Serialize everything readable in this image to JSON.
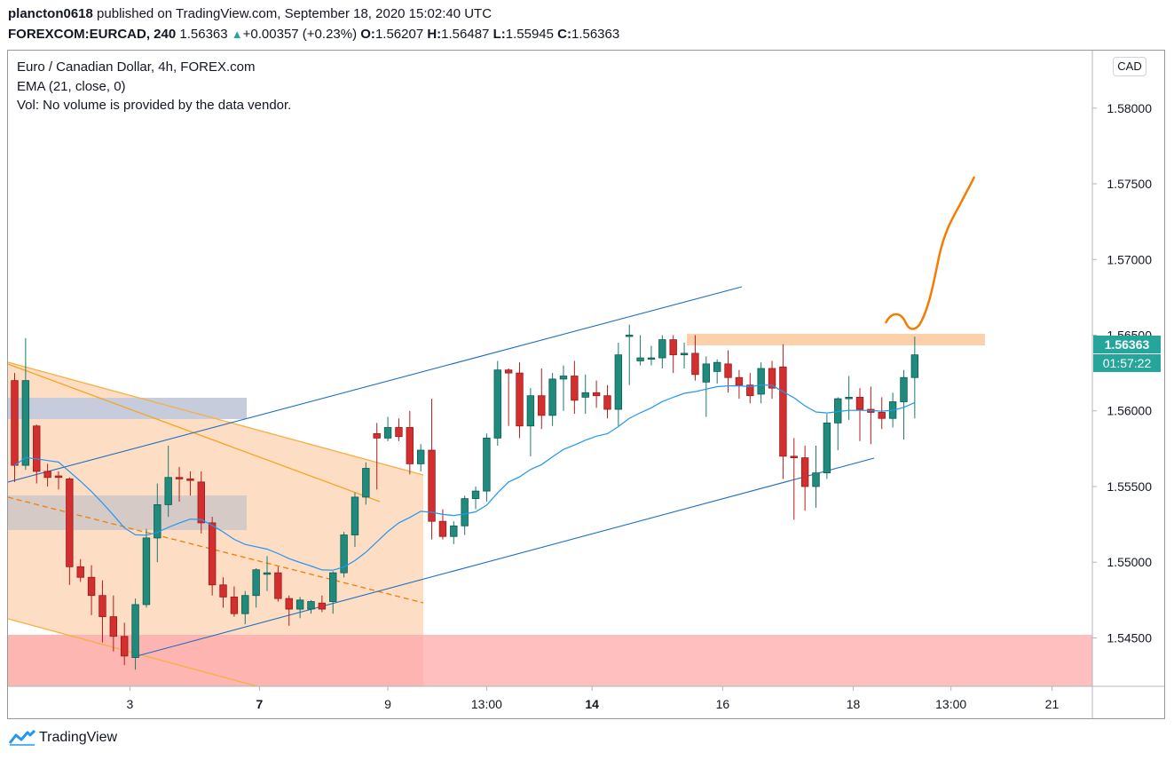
{
  "header": {
    "publisher": "plancton0618",
    "published_text": "published on TradingView.com, September 18, 2020 15:02:40 UTC",
    "symbol": "FOREXCOM:EURCAD, 240",
    "last": "1.56363",
    "change_arrow": "▲",
    "change": "+0.00357 (+0.23%)",
    "o_label": "O:",
    "o_value": "1.56207",
    "h_label": "H:",
    "h_value": "1.56487",
    "l_label": "L:",
    "l_value": "1.55945",
    "c_label": "C:",
    "c_value": "1.56363"
  },
  "legend": {
    "title": "Euro / Canadian Dollar, 4h, FOREX.com",
    "ema": "EMA (21, close, 0)",
    "vol": "Vol: No volume is provided by the data vendor."
  },
  "currency_button": "CAD",
  "price_tag": "1.56363",
  "countdown_tag": "01:57:22",
  "footer": {
    "brand": "TradingView",
    "logo_icon": "tradingview-logo-icon"
  },
  "colors": {
    "bull": "#26a69a",
    "bull_body": "#1b7a6e",
    "bear": "#c62828",
    "ema": "#2196f3",
    "trendline": "#1e6fc2",
    "orange": "#f57c00",
    "zone": "#fdd9bd",
    "pink": "#ffb4b4",
    "gray_zone": "#c8c3c8",
    "blue_zone": "#c5d8f3"
  },
  "chart_data": {
    "type": "candlestick",
    "title": "Euro / Canadian Dollar, 4h, FOREX.com",
    "ylim": [
      1.5418,
      1.5838
    ],
    "y_ticks": [
      "1.58000",
      "1.57500",
      "1.57000",
      "1.56500",
      "1.56000",
      "1.55500",
      "1.55000",
      "1.54500"
    ],
    "y_tick_values": [
      1.58,
      1.575,
      1.57,
      1.565,
      1.56,
      1.555,
      1.55,
      1.545
    ],
    "x_ticks": [
      "3",
      "7",
      "9",
      "13:00",
      "14",
      "16",
      "18",
      "13:00",
      "21"
    ],
    "x_tick_bar_index": [
      10.5,
      22.3,
      34.0,
      43.0,
      52.6,
      64.5,
      76.4,
      85.3,
      94.5
    ],
    "bold_x_ticks": [
      "7",
      "14"
    ],
    "candles": [
      [
        1.562,
        1.5625,
        1.5553,
        1.5564
      ],
      [
        1.5564,
        1.5648,
        1.5561,
        1.562
      ],
      [
        1.559,
        1.5591,
        1.5552,
        1.556
      ],
      [
        1.556,
        1.5565,
        1.555,
        1.5556
      ],
      [
        1.5557,
        1.556,
        1.5548,
        1.5556
      ],
      [
        1.5555,
        1.5556,
        1.5485,
        1.5497
      ],
      [
        1.5497,
        1.5502,
        1.5487,
        1.549
      ],
      [
        1.549,
        1.5498,
        1.5465,
        1.5478
      ],
      [
        1.5478,
        1.5488,
        1.5447,
        1.5464
      ],
      [
        1.5464,
        1.5478,
        1.5441,
        1.5451
      ],
      [
        1.5451,
        1.546,
        1.5432,
        1.5438
      ],
      [
        1.5437,
        1.5476,
        1.5429,
        1.5472
      ],
      [
        1.5472,
        1.5522,
        1.547,
        1.5516
      ],
      [
        1.5516,
        1.5552,
        1.55,
        1.5538
      ],
      [
        1.5538,
        1.5577,
        1.553,
        1.5556
      ],
      [
        1.5556,
        1.5563,
        1.554,
        1.5555
      ],
      [
        1.5555,
        1.556,
        1.5544,
        1.5554
      ],
      [
        1.5553,
        1.556,
        1.5519,
        1.5526
      ],
      [
        1.5526,
        1.553,
        1.5478,
        1.5485
      ],
      [
        1.5485,
        1.549,
        1.547,
        1.5477
      ],
      [
        1.5477,
        1.5484,
        1.5464,
        1.5466
      ],
      [
        1.5466,
        1.5481,
        1.5459,
        1.5478
      ],
      [
        1.5478,
        1.5496,
        1.547,
        1.5495
      ],
      [
        1.5492,
        1.5504,
        1.5481,
        1.5493
      ],
      [
        1.5493,
        1.5497,
        1.5474,
        1.5476
      ],
      [
        1.5476,
        1.5478,
        1.5458,
        1.5469
      ],
      [
        1.5469,
        1.5477,
        1.5463,
        1.5475
      ],
      [
        1.5469,
        1.5475,
        1.5466,
        1.5474
      ],
      [
        1.5473,
        1.5478,
        1.5467,
        1.5469
      ],
      [
        1.5474,
        1.5494,
        1.5466,
        1.5493
      ],
      [
        1.5493,
        1.552,
        1.549,
        1.5518
      ],
      [
        1.5518,
        1.5546,
        1.551,
        1.5543
      ],
      [
        1.5543,
        1.5566,
        1.5538,
        1.5562
      ],
      [
        1.5585,
        1.5592,
        1.5548,
        1.5582
      ],
      [
        1.5582,
        1.5596,
        1.558,
        1.5589
      ],
      [
        1.5589,
        1.5595,
        1.558,
        1.5583
      ],
      [
        1.5589,
        1.56,
        1.5558,
        1.5565
      ],
      [
        1.5565,
        1.5578,
        1.556,
        1.5574
      ],
      [
        1.5574,
        1.5608,
        1.5515,
        1.5527
      ],
      [
        1.5527,
        1.5535,
        1.5515,
        1.5517
      ],
      [
        1.5517,
        1.5527,
        1.5512,
        1.5524
      ],
      [
        1.5524,
        1.5544,
        1.5518,
        1.5542
      ],
      [
        1.5542,
        1.555,
        1.5535,
        1.5547
      ],
      [
        1.5547,
        1.5585,
        1.554,
        1.5582
      ],
      [
        1.5582,
        1.5633,
        1.5577,
        1.5627
      ],
      [
        1.5627,
        1.5628,
        1.559,
        1.5625
      ],
      [
        1.5625,
        1.5632,
        1.5582,
        1.559
      ],
      [
        1.559,
        1.5615,
        1.557,
        1.561
      ],
      [
        1.561,
        1.5628,
        1.5588,
        1.5597
      ],
      [
        1.5597,
        1.5625,
        1.559,
        1.5621
      ],
      [
        1.5621,
        1.563,
        1.56,
        1.5623
      ],
      [
        1.5623,
        1.5633,
        1.5598,
        1.5607
      ],
      [
        1.5609,
        1.5624,
        1.5598,
        1.5612
      ],
      [
        1.5612,
        1.562,
        1.5602,
        1.561
      ],
      [
        1.561,
        1.5617,
        1.5595,
        1.5601
      ],
      [
        1.5601,
        1.5645,
        1.559,
        1.5637
      ],
      [
        1.565,
        1.5657,
        1.5617,
        1.565
      ],
      [
        1.5633,
        1.565,
        1.563,
        1.5635
      ],
      [
        1.5635,
        1.5643,
        1.563,
        1.5635
      ],
      [
        1.5635,
        1.565,
        1.5628,
        1.5647
      ],
      [
        1.5647,
        1.565,
        1.5625,
        1.5637
      ],
      [
        1.5637,
        1.5645,
        1.5628,
        1.5638
      ],
      [
        1.5638,
        1.565,
        1.562,
        1.5624
      ],
      [
        1.5619,
        1.5636,
        1.5596,
        1.5631
      ],
      [
        1.5626,
        1.5634,
        1.5618,
        1.5632
      ],
      [
        1.5631,
        1.564,
        1.5612,
        1.5622
      ],
      [
        1.5622,
        1.5627,
        1.5608,
        1.5617
      ],
      [
        1.5617,
        1.5625,
        1.5605,
        1.561
      ],
      [
        1.5611,
        1.5632,
        1.5605,
        1.5628
      ],
      [
        1.5628,
        1.5633,
        1.5608,
        1.5615
      ],
      [
        1.5629,
        1.5644,
        1.5555,
        1.557
      ],
      [
        1.557,
        1.5582,
        1.5528,
        1.5569
      ],
      [
        1.5569,
        1.5577,
        1.5534,
        1.555
      ],
      [
        1.555,
        1.5577,
        1.5536,
        1.5559
      ],
      [
        1.5559,
        1.5598,
        1.5555,
        1.5592
      ],
      [
        1.5592,
        1.5609,
        1.5574,
        1.5608
      ],
      [
        1.5608,
        1.5623,
        1.5594,
        1.5609
      ],
      [
        1.5609,
        1.5615,
        1.558,
        1.5601
      ],
      [
        1.5601,
        1.5616,
        1.5578,
        1.5599
      ],
      [
        1.5599,
        1.5609,
        1.5588,
        1.5595
      ],
      [
        1.5595,
        1.5612,
        1.5589,
        1.5606
      ],
      [
        1.5606,
        1.5627,
        1.5581,
        1.5622
      ],
      [
        1.5622,
        1.5649,
        1.5595,
        1.5637
      ]
    ]
  }
}
